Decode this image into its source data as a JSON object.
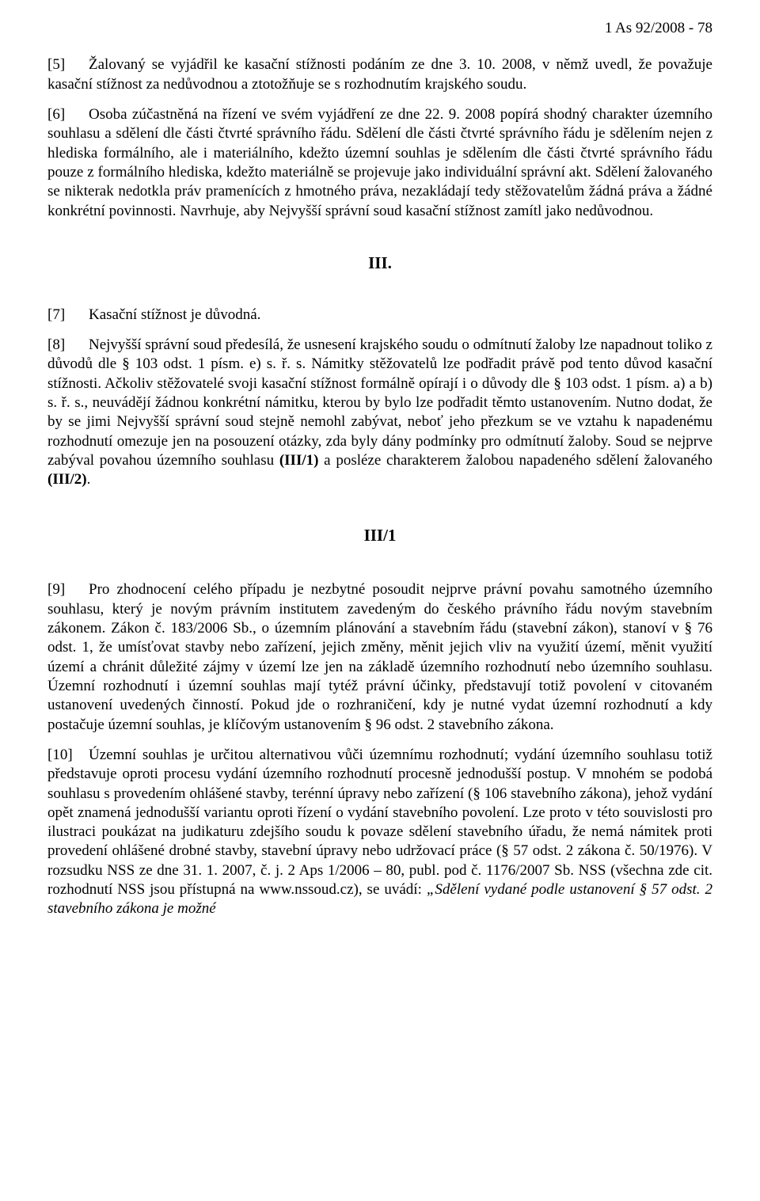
{
  "case_id": "1 As 92/2008 - 78",
  "para5": {
    "bracket": "[5]",
    "lead": "Žalovaný se vyjádřil ke kasační stížnosti podáním ze dne 3. 10. 2008, v němž uvedl, že považuje kasační stížnost za nedůvodnou a ztotožňuje se s rozhodnutím krajského soudu."
  },
  "para6": {
    "bracket": "[6]",
    "text": "Osoba zúčastněná na řízení ve svém vyjádření ze dne 22. 9. 2008 popírá shodný charakter územního souhlasu a sdělení dle části čtvrté správního řádu. Sdělení dle části čtvrté správního řádu je sdělením nejen z hlediska formálního, ale i materiálního, kdežto územní souhlas je sdělením dle části čtvrté správního řádu pouze z formálního hlediska, kdežto materiálně se projevuje jako individuální správní akt. Sdělení žalovaného se nikterak nedotkla práv pramenících z hmotného práva, nezakládají tedy stěžovatelům žádná práva a žádné konkrétní povinnosti. Navrhuje, aby Nejvyšší správní soud kasační stížnost zamítl jako nedůvodnou."
  },
  "sec3": "III.",
  "para7": {
    "bracket": "[7]",
    "text": "Kasační stížnost je důvodná."
  },
  "para8_bracket": "[8]",
  "para8_a": "Nejvyšší správní soud předesílá, že usnesení krajského soudu o odmítnutí žaloby lze napadnout toliko z důvodů dle § 103 odst. 1 písm. e) s. ř. s. Námitky stěžovatelů lze podřadit právě pod tento důvod kasační stížnosti. Ačkoliv stěžovatelé svoji kasační stížnost formálně opírají i o důvody dle § 103 odst. 1 písm. a) a b) s. ř. s., neuvádějí žádnou konkrétní námitku, kterou by bylo lze podřadit těmto ustanovením. Nutno dodat, že by se jimi Nejvyšší správní soud stejně nemohl zabývat, neboť jeho přezkum se ve vztahu k napadenému rozhodnutí omezuje jen na posouzení otázky, zda byly dány podmínky pro odmítnutí žaloby. Soud se nejprve zabýval povahou územního souhlasu ",
  "para8_b1": "(III/1)",
  "para8_c": " a posléze charakterem žalobou napadeného sdělení žalovaného ",
  "para8_b2": "(III/2)",
  "para8_d": ".",
  "sec31": "III/1",
  "para9": {
    "bracket": "[9]",
    "text": "Pro zhodnocení celého případu je nezbytné posoudit nejprve právní povahu samotného územního souhlasu, který je novým právním institutem zavedeným do českého právního řádu novým stavebním zákonem. Zákon č. 183/2006 Sb., o územním plánování a stavebním řádu (stavební zákon), stanoví v § 76 odst. 1, že umísťovat stavby nebo zařízení, jejich změny, měnit jejich vliv na využití území, měnit využití území a chránit důležité zájmy v území lze jen na základě územního rozhodnutí nebo územního souhlasu. Územní rozhodnutí i územní souhlas mají tytéž právní účinky, představují totiž povolení v citovaném ustanovení uvedených činností. Pokud jde o rozhraničení, kdy je nutné vydat územní rozhodnutí a kdy postačuje územní souhlas, je klíčovým ustanovením § 96 odst. 2 stavebního zákona."
  },
  "para10_bracket": "[10]",
  "para10_a": "Územní souhlas je určitou alternativou vůči územnímu rozhodnutí; vydání územního souhlasu totiž představuje oproti procesu vydání územního rozhodnutí procesně jednodušší postup. V mnohém se podobá souhlasu s provedením ohlášené stavby, terénní úpravy nebo zařízení (§ 106 stavebního zákona), jehož vydání opět znamená jednodušší variantu oproti řízení o vydání stavebního povolení. Lze proto v této souvislosti pro ilustraci poukázat na judikaturu zdejšího soudu k povaze sdělení stavebního úřadu, že nemá námitek proti provedení ohlášené drobné stavby, stavební úpravy nebo udržovací práce (§ 57 odst. 2 zákona č. 50/1976). V rozsudku NSS ze dne 31. 1. 2007, č. j. 2 Aps 1/2006 – 80, publ. pod č. 1176/2007 Sb. NSS (všechna zde cit. rozhodnutí NSS jsou přístupná na www.nssoud.cz), se uvádí: ",
  "para10_it": "„Sdělení vydané podle ustanovení § 57 odst. 2 stavebního zákona je možné"
}
